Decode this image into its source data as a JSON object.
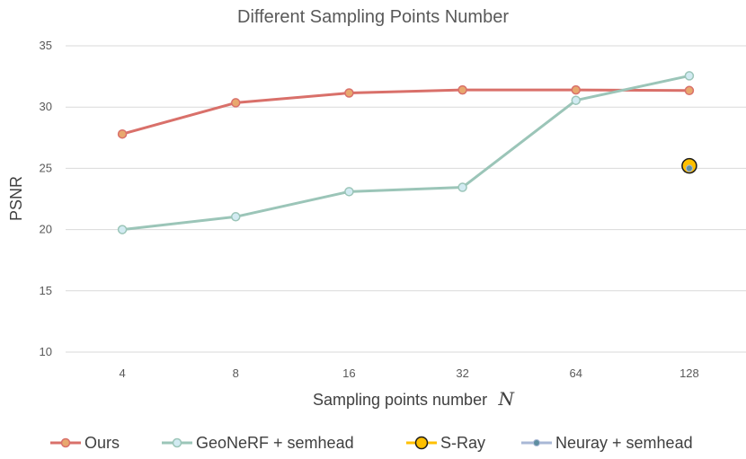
{
  "chart_data": {
    "type": "line",
    "title": "Different Sampling Points Number",
    "xlabel": "Sampling points number",
    "xlabel_symbol": "N",
    "ylabel": "PSNR",
    "categories": [
      "4",
      "8",
      "16",
      "32",
      "64",
      "128"
    ],
    "ylim": [
      10,
      35
    ],
    "yticks": [
      10,
      15,
      20,
      25,
      30,
      35
    ],
    "grid": true,
    "legend_position": "bottom",
    "series": [
      {
        "name": "Ours",
        "color": "#D9706A",
        "fill": "#E8A86E",
        "values": [
          27.8,
          30.35,
          31.15,
          31.4,
          31.4,
          31.35
        ],
        "style": "line-marker"
      },
      {
        "name": "GeoNeRF + semhead",
        "color": "#9BC5B8",
        "fill": "#D2EBF2",
        "values": [
          20.0,
          21.05,
          23.1,
          23.45,
          30.55,
          32.55
        ],
        "style": "line-marker"
      },
      {
        "name": "S-Ray",
        "color": "#FFC000",
        "fill": "#FFC000",
        "values": [
          null,
          null,
          null,
          null,
          null,
          25.2
        ],
        "style": "marker-large"
      },
      {
        "name": "Neuray + semhead",
        "color": "#A9B8D6",
        "fill": "#5E8EA0",
        "values": [
          null,
          null,
          null,
          null,
          null,
          25.0
        ],
        "style": "marker-small"
      }
    ]
  }
}
